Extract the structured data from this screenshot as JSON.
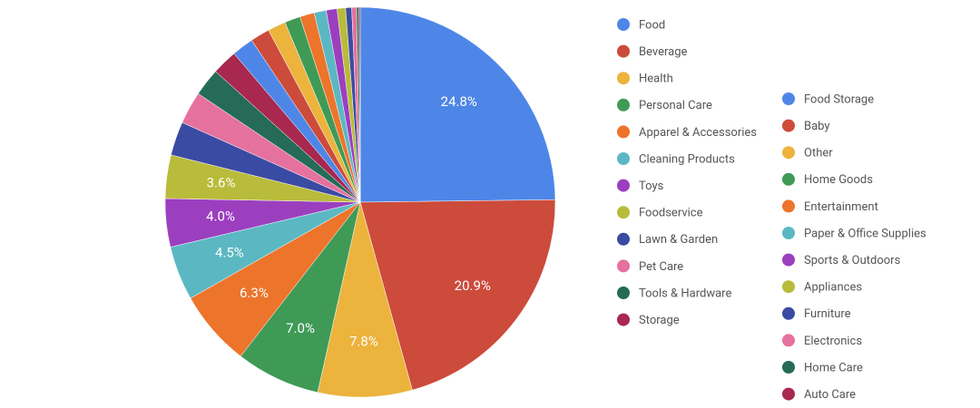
{
  "chart_data": {
    "type": "pie",
    "categories": [
      "Food",
      "Beverage",
      "Health",
      "Personal Care",
      "Apparel & Accessories",
      "Cleaning Products",
      "Toys",
      "Foodservice",
      "Lawn & Garden",
      "Pet Care",
      "Tools & Hardware",
      "Storage",
      "Food Storage",
      "Baby",
      "Other",
      "Home Goods",
      "Entertainment",
      "Paper & Office Supplies",
      "Sports & Outdoors",
      "Appliances",
      "Furniture",
      "Electronics",
      "Home Care",
      "Auto Care"
    ],
    "values": [
      24.8,
      20.9,
      7.8,
      7.0,
      6.3,
      4.5,
      4.0,
      3.6,
      2.8,
      2.7,
      2.3,
      2.1,
      1.8,
      1.6,
      1.5,
      1.3,
      1.2,
      1.0,
      0.9,
      0.7,
      0.5,
      0.4,
      0.2,
      0.1
    ],
    "value_labels": [
      "24.8%",
      "20.9%",
      "7.8%",
      "7.0%",
      "6.3%",
      "4.5%",
      "4.0%",
      "3.6%",
      null,
      null,
      null,
      null,
      null,
      null,
      null,
      null,
      null,
      null,
      null,
      null,
      null,
      null,
      null,
      null
    ],
    "colors": [
      "#4e86e8",
      "#cc4b3b",
      "#ecb33d",
      "#3f9a56",
      "#ed742b",
      "#5bb8c3",
      "#9b3fbf",
      "#b9bb3a",
      "#3a4ba3",
      "#e5719e",
      "#256b57",
      "#a8284f",
      "#4e86e8",
      "#cc4b3b",
      "#ecb33d",
      "#3f9a56",
      "#ed742b",
      "#5bb8c3",
      "#9b3fbf",
      "#b9bb3a",
      "#3a4ba3",
      "#e5719e",
      "#256b57",
      "#a8284f"
    ],
    "legend": "right"
  }
}
